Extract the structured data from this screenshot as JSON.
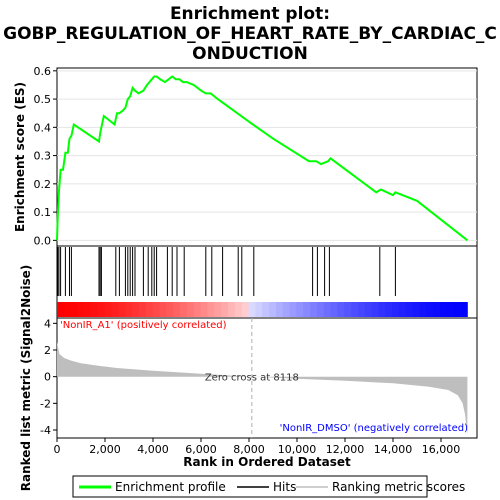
{
  "chart_data": {
    "type": "line",
    "title_line1": "Enrichment plot:",
    "title_line2": "GOBP_REGULATION_OF_HEART_RATE_BY_CARDIAC_C",
    "title_line3": "ONDUCTION",
    "top_ylabel": "Enrichment score (ES)",
    "bottom_ylabel": "Ranked list metric (Signal2Noise)",
    "xlabel": "Rank in Ordered Dataset",
    "x_ticks": [
      "0",
      "2,000",
      "4,000",
      "6,000",
      "8,000",
      "10,000",
      "12,000",
      "14,000",
      "16,000"
    ],
    "x_tick_values": [
      0,
      2000,
      4000,
      6000,
      8000,
      10000,
      12000,
      14000,
      16000
    ],
    "xlim": [
      0,
      17500
    ],
    "es_ylim": [
      -0.02,
      0.61
    ],
    "es_y_ticks": [
      "0.0",
      "0.1",
      "0.2",
      "0.3",
      "0.4",
      "0.5",
      "0.6"
    ],
    "es_y_tick_values": [
      0.0,
      0.1,
      0.2,
      0.3,
      0.4,
      0.5,
      0.6
    ],
    "metric_ylim": [
      -4.6,
      4.4
    ],
    "metric_y_ticks": [
      "4",
      "2",
      "0",
      "-2",
      "-4"
    ],
    "metric_y_tick_values": [
      4,
      2,
      0,
      -2,
      -4
    ],
    "total_rank": 17100,
    "zero_cross": 8118,
    "zero_cross_label": "Zero cross at 8118",
    "pos_label": "'NonIR_A1' (positively correlated)",
    "neg_label": "'NonIR_DMSO' (negatively correlated)",
    "series": [
      {
        "name": "Enrichment profile",
        "color": "#00ff00",
        "x": [
          0,
          30,
          80,
          150,
          250,
          350,
          450,
          520,
          600,
          700,
          1750,
          1800,
          1850,
          1950,
          2400,
          2500,
          2600,
          2750,
          2850,
          2950,
          3050,
          3150,
          3250,
          3400,
          3600,
          3750,
          3850,
          3950,
          4050,
          4150,
          4300,
          4500,
          4650,
          4800,
          4950,
          5100,
          5250,
          5400,
          5700,
          6000,
          6200,
          6400,
          6700,
          8000,
          9000,
          10500,
          10800,
          11000,
          11300,
          11400,
          13300,
          13500,
          14000,
          14100,
          15000,
          17100
        ],
        "y": [
          0.0,
          0.08,
          0.17,
          0.25,
          0.25,
          0.31,
          0.31,
          0.36,
          0.37,
          0.41,
          0.35,
          0.38,
          0.4,
          0.44,
          0.41,
          0.45,
          0.45,
          0.46,
          0.47,
          0.5,
          0.51,
          0.54,
          0.53,
          0.52,
          0.53,
          0.55,
          0.56,
          0.57,
          0.58,
          0.58,
          0.57,
          0.56,
          0.57,
          0.58,
          0.57,
          0.57,
          0.56,
          0.56,
          0.55,
          0.53,
          0.52,
          0.52,
          0.5,
          0.42,
          0.36,
          0.28,
          0.28,
          0.27,
          0.28,
          0.29,
          0.17,
          0.18,
          0.16,
          0.17,
          0.14,
          0.0
        ]
      },
      {
        "name": "Hits",
        "color": "#000000",
        "positions": [
          30,
          80,
          150,
          350,
          520,
          600,
          1750,
          1800,
          1850,
          2450,
          2600,
          2850,
          2950,
          3050,
          3150,
          3250,
          3600,
          3800,
          3950,
          4050,
          4150,
          4600,
          4800,
          5000,
          5300,
          6200,
          6450,
          6900,
          7550,
          7700,
          8200,
          10650,
          10850,
          11150,
          11350,
          13450,
          14100
        ]
      },
      {
        "name": "Ranking metric scores",
        "color": "#bebebe",
        "metric_x": [
          0,
          100,
          300,
          600,
          1000,
          1800,
          2500,
          4000,
          6000,
          8118,
          10000,
          12000,
          14000,
          15500,
          16300,
          16700,
          16900,
          17000,
          17100
        ],
        "metric_y": [
          2.6,
          1.7,
          1.4,
          1.2,
          1.0,
          0.8,
          0.65,
          0.45,
          0.22,
          0.0,
          -0.15,
          -0.3,
          -0.5,
          -0.75,
          -1.0,
          -1.4,
          -2.0,
          -2.8,
          -4.3
        ]
      }
    ],
    "legend_placement": "bottom"
  }
}
